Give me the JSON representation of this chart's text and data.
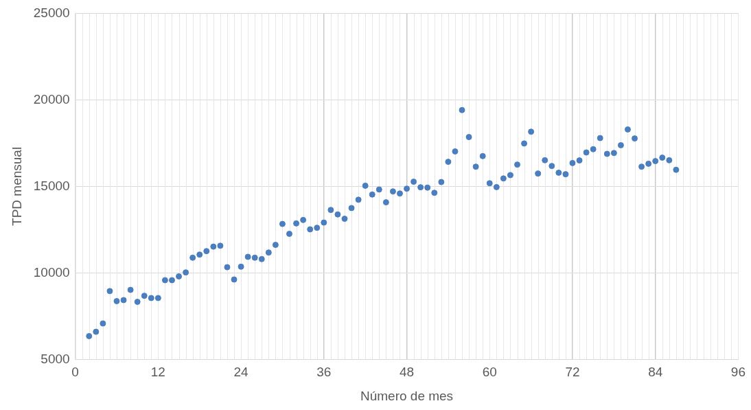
{
  "chart_data": {
    "type": "scatter",
    "xlabel": "Número de mes",
    "ylabel": "TPD mensual",
    "x": [
      2,
      3,
      4,
      5,
      6,
      7,
      8,
      9,
      10,
      11,
      12,
      13,
      14,
      15,
      16,
      17,
      18,
      19,
      20,
      21,
      22,
      23,
      24,
      25,
      26,
      27,
      28,
      29,
      30,
      31,
      32,
      33,
      34,
      35,
      36,
      37,
      38,
      39,
      40,
      41,
      42,
      43,
      44,
      45,
      46,
      47,
      48,
      49,
      50,
      51,
      52,
      53,
      54,
      55,
      56,
      57,
      58,
      59,
      60,
      61,
      62,
      63,
      64,
      65,
      66,
      67,
      68,
      69,
      70,
      71,
      72,
      73,
      74,
      75,
      76,
      77,
      78,
      79,
      80,
      81,
      82,
      83,
      84,
      85,
      86,
      87
    ],
    "series": [
      {
        "color": "#4a7ebf",
        "values": [
          6350,
          6600,
          7080,
          8950,
          8370,
          8430,
          9020,
          8330,
          8680,
          8550,
          8550,
          9580,
          9580,
          9800,
          10030,
          10880,
          11060,
          11260,
          11520,
          11570,
          10330,
          9620,
          10360,
          10930,
          10880,
          10800,
          11180,
          11620,
          12830,
          12260,
          12860,
          13060,
          12520,
          12610,
          12910,
          13640,
          13380,
          13130,
          13750,
          14230,
          15040,
          14530,
          14820,
          14080,
          14710,
          14590,
          14870,
          15270,
          14950,
          14930,
          14630,
          15250,
          16420,
          17020,
          19410,
          17850,
          16140,
          16750,
          15180,
          14960,
          15460,
          15650,
          16260,
          17480,
          18160,
          15740,
          16510,
          16180,
          15790,
          15700,
          16350,
          16500,
          16960,
          17150,
          17790,
          16880,
          16930,
          17380,
          18290,
          17770,
          16140,
          16310,
          16460,
          16660,
          16510,
          15960
        ]
      }
    ],
    "xlim": [
      0,
      96
    ],
    "xticks": [
      0,
      12,
      24,
      36,
      48,
      60,
      72,
      84,
      96
    ],
    "ylim": [
      5000,
      25000
    ],
    "yticks": [
      5000,
      10000,
      15000,
      20000,
      25000
    ],
    "grid": true,
    "marker": "circle",
    "legend": false
  }
}
